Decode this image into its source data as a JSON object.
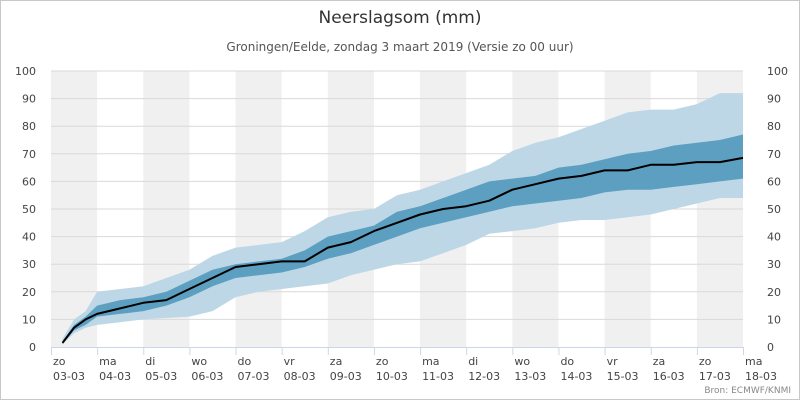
{
  "chart_data": {
    "type": "area",
    "title": "Neerslagsom (mm)",
    "subtitle": "Groningen/Eelde, zondag 3 maart 2019 (Versie zo 00 uur)",
    "source": "Bron: ECMWF/KNMI",
    "ylim": [
      0,
      100
    ],
    "yticks": [
      "0",
      "10",
      "20",
      "30",
      "40",
      "50",
      "60",
      "70",
      "80",
      "90",
      "100"
    ],
    "xlim": [
      0,
      15
    ],
    "x_ticks": [
      {
        "day": "zo",
        "date": "03-03"
      },
      {
        "day": "ma",
        "date": "04-03"
      },
      {
        "day": "di",
        "date": "05-03"
      },
      {
        "day": "wo",
        "date": "06-03"
      },
      {
        "day": "do",
        "date": "07-03"
      },
      {
        "day": "vr",
        "date": "08-03"
      },
      {
        "day": "za",
        "date": "09-03"
      },
      {
        "day": "zo",
        "date": "10-03"
      },
      {
        "day": "ma",
        "date": "11-03"
      },
      {
        "day": "di",
        "date": "12-03"
      },
      {
        "day": "wo",
        "date": "13-03"
      },
      {
        "day": "do",
        "date": "14-03"
      },
      {
        "day": "vr",
        "date": "15-03"
      },
      {
        "day": "za",
        "date": "16-03"
      },
      {
        "day": "zo",
        "date": "17-03"
      },
      {
        "day": "ma",
        "date": "18-03"
      }
    ],
    "series": [
      {
        "name": "outer_lower",
        "x": [
          0.25,
          0.5,
          0.75,
          1,
          1.5,
          2,
          2.5,
          3,
          3.5,
          4,
          4.5,
          5,
          5.5,
          6,
          6.5,
          7,
          7.5,
          8,
          8.5,
          9,
          9.5,
          10,
          10.5,
          11,
          11.5,
          12,
          12.5,
          13,
          13.5,
          14,
          14.5,
          15
        ],
        "values": [
          1,
          5,
          7,
          8,
          9,
          10,
          10.5,
          11,
          13,
          18,
          20,
          21,
          22,
          23,
          26,
          28,
          30,
          31,
          34,
          37,
          41,
          42,
          43,
          45,
          46,
          46,
          47,
          48,
          50,
          52,
          54,
          54
        ]
      },
      {
        "name": "outer_upper",
        "x": [
          0.25,
          0.5,
          0.75,
          1,
          1.5,
          2,
          2.5,
          3,
          3.5,
          4,
          4.5,
          5,
          5.5,
          6,
          6.5,
          7,
          7.5,
          8,
          8.5,
          9,
          9.5,
          10,
          10.5,
          11,
          11.5,
          12,
          12.5,
          13,
          13.5,
          14,
          14.5,
          15
        ],
        "values": [
          3,
          10,
          13,
          20,
          21,
          22,
          25,
          28,
          33,
          36,
          37,
          38,
          42,
          47,
          49,
          50,
          55,
          57,
          60,
          63,
          66,
          71,
          74,
          76,
          79,
          82,
          85,
          86,
          86,
          88,
          92,
          92
        ]
      },
      {
        "name": "inner_lower",
        "x": [
          0.25,
          0.5,
          0.75,
          1,
          1.5,
          2,
          2.5,
          3,
          3.5,
          4,
          4.5,
          5,
          5.5,
          6,
          6.5,
          7,
          7.5,
          8,
          8.5,
          9,
          9.5,
          10,
          10.5,
          11,
          11.5,
          12,
          12.5,
          13,
          13.5,
          14,
          14.5,
          15
        ],
        "values": [
          1,
          6,
          8,
          11,
          12,
          13,
          15,
          18,
          22,
          25,
          26,
          27,
          29,
          32,
          34,
          37,
          40,
          43,
          45,
          47,
          49,
          51,
          52,
          53,
          54,
          56,
          57,
          57,
          58,
          59,
          60,
          61
        ]
      },
      {
        "name": "inner_upper",
        "x": [
          0.25,
          0.5,
          0.75,
          1,
          1.5,
          2,
          2.5,
          3,
          3.5,
          4,
          4.5,
          5,
          5.5,
          6,
          6.5,
          7,
          7.5,
          8,
          8.5,
          9,
          9.5,
          10,
          10.5,
          11,
          11.5,
          12,
          12.5,
          13,
          13.5,
          14,
          14.5,
          15
        ],
        "values": [
          2,
          8,
          11,
          15,
          17,
          18,
          20,
          24,
          28,
          30,
          31,
          32,
          35,
          40,
          42,
          44,
          49,
          51,
          54,
          57,
          60,
          61,
          62,
          65,
          66,
          68,
          70,
          71,
          73,
          74,
          75,
          77
        ]
      },
      {
        "name": "median",
        "x": [
          0.25,
          0.5,
          0.75,
          1,
          1.5,
          2,
          2.5,
          3,
          3.5,
          4,
          4.5,
          5,
          5.5,
          6,
          6.5,
          7,
          7.5,
          8,
          8.5,
          9,
          9.5,
          10,
          10.5,
          11,
          11.5,
          12,
          12.5,
          13,
          13.5,
          14,
          14.5,
          15
        ],
        "values": [
          1.5,
          7,
          10,
          12,
          14,
          16,
          17,
          21,
          25,
          29,
          30,
          31,
          31,
          36,
          38,
          42,
          45,
          48,
          50,
          51,
          53,
          57,
          59,
          61,
          62,
          64,
          64,
          66,
          66,
          67,
          67,
          68.5
        ]
      }
    ],
    "colors": {
      "outer_band": "#bdd7e7",
      "inner_band": "#5d9fc0",
      "median_line": "#000000",
      "day_shade": "#f0f0f0",
      "grid": "#d9d9d9",
      "axis": "#ccd6eb"
    }
  }
}
